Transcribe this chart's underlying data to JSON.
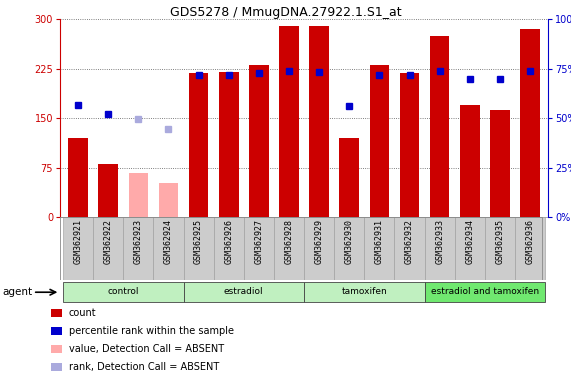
{
  "title": "GDS5278 / MmugDNA.27922.1.S1_at",
  "samples": [
    "GSM362921",
    "GSM362922",
    "GSM362923",
    "GSM362924",
    "GSM362925",
    "GSM362926",
    "GSM362927",
    "GSM362928",
    "GSM362929",
    "GSM362930",
    "GSM362931",
    "GSM362932",
    "GSM362933",
    "GSM362934",
    "GSM362935",
    "GSM362936"
  ],
  "bar_values": [
    120,
    80,
    67,
    52,
    218,
    220,
    230,
    290,
    290,
    120,
    230,
    218,
    275,
    170,
    162,
    285
  ],
  "bar_absent": [
    false,
    false,
    true,
    true,
    false,
    false,
    false,
    false,
    false,
    false,
    false,
    false,
    false,
    false,
    false,
    false
  ],
  "dot_values_pct": [
    56.7,
    52.3,
    49.3,
    44.3,
    71.7,
    71.7,
    72.7,
    74.0,
    73.3,
    56.0,
    71.7,
    71.7,
    74.0,
    70.0,
    70.0,
    74.0
  ],
  "dot_absent": [
    false,
    false,
    true,
    true,
    false,
    false,
    false,
    false,
    false,
    false,
    false,
    false,
    false,
    false,
    false,
    false
  ],
  "ylim_left": [
    0,
    300
  ],
  "ylim_right": [
    0,
    100
  ],
  "yticks_left": [
    0,
    75,
    150,
    225,
    300
  ],
  "yticks_right": [
    0,
    25,
    50,
    75,
    100
  ],
  "ytick_labels_right": [
    "0%",
    "25%",
    "50%",
    "75%",
    "100%"
  ],
  "groups": [
    {
      "label": "control",
      "start": 0,
      "end": 4,
      "color": "#c0f0c0"
    },
    {
      "label": "estradiol",
      "start": 4,
      "end": 8,
      "color": "#c0f0c0"
    },
    {
      "label": "tamoxifen",
      "start": 8,
      "end": 12,
      "color": "#c0f0c0"
    },
    {
      "label": "estradiol and tamoxifen",
      "start": 12,
      "end": 16,
      "color": "#70e870"
    }
  ],
  "bar_color_present": "#cc0000",
  "bar_color_absent": "#ffaaaa",
  "dot_color_present": "#0000cc",
  "dot_color_absent": "#aaaadd",
  "agent_label": "agent",
  "legend_items": [
    {
      "color": "#cc0000",
      "label": "count"
    },
    {
      "color": "#0000cc",
      "label": "percentile rank within the sample"
    },
    {
      "color": "#ffaaaa",
      "label": "value, Detection Call = ABSENT"
    },
    {
      "color": "#aaaadd",
      "label": "rank, Detection Call = ABSENT"
    }
  ],
  "plot_bg_color": "#ffffff",
  "sample_label_bg": "#cccccc",
  "grid_color": "#555555"
}
